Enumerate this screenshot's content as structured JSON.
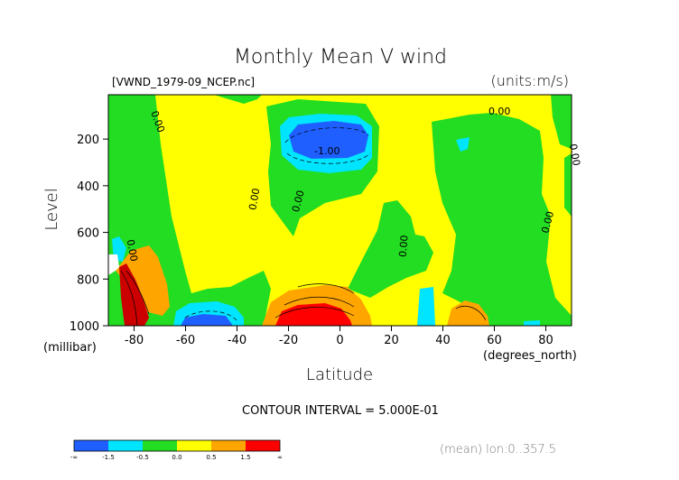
{
  "chart_data": {
    "type": "heatmap",
    "title": "Monthly Mean V wind",
    "file_label": "[VWND_1979-09_NCEP.nc]",
    "units_label": "(units:m/s)",
    "xlabel": "Latitude",
    "ylabel": "Level",
    "x_units": "(degrees_north)",
    "y_units": "(millibar)",
    "xlim": [
      -90,
      90
    ],
    "ylim": [
      1000,
      10
    ],
    "x_ticks": [
      {
        "value": -80,
        "label": "-80"
      },
      {
        "value": -60,
        "label": "-60"
      },
      {
        "value": -40,
        "label": "-40"
      },
      {
        "value": -20,
        "label": "-20"
      },
      {
        "value": 0,
        "label": "0"
      },
      {
        "value": 20,
        "label": "20"
      },
      {
        "value": 40,
        "label": "40"
      },
      {
        "value": 60,
        "label": "60"
      },
      {
        "value": 80,
        "label": "80"
      }
    ],
    "y_ticks": [
      {
        "value": 200,
        "label": "200"
      },
      {
        "value": 400,
        "label": "400"
      },
      {
        "value": 600,
        "label": "600"
      },
      {
        "value": 800,
        "label": "800"
      },
      {
        "value": 1000,
        "label": "1000"
      }
    ],
    "contour_interval_text": "CONTOUR INTERVAL = 5.000E-01",
    "average_text": "(mean) lon:0..357.5",
    "contour_labels": [
      {
        "text": "0.00",
        "lat": -72,
        "lev": 130,
        "rotate": 70
      },
      {
        "text": "0.00",
        "lat": 62,
        "lev": 95,
        "rotate": 0
      },
      {
        "text": "-1.00",
        "lat": -5,
        "lev": 265,
        "rotate": 0
      },
      {
        "text": "0.00",
        "lat": -32,
        "lev": 460,
        "rotate": -80
      },
      {
        "text": "0.00",
        "lat": -15,
        "lev": 470,
        "rotate": -75
      },
      {
        "text": "0.00",
        "lat": 82,
        "lev": 560,
        "rotate": -75
      },
      {
        "text": "0.00",
        "lat": 90,
        "lev": 270,
        "rotate": 80
      },
      {
        "text": "0.00",
        "lat": 26,
        "lev": 660,
        "rotate": -85
      },
      {
        "text": "0.00",
        "lat": -82,
        "lev": 680,
        "rotate": 80
      }
    ],
    "colorbar": {
      "colors": [
        "#1f5fff",
        "#00e5ff",
        "#22dd22",
        "#ffff00",
        "#ffa500",
        "#ff0000"
      ],
      "labels": [
        "-∞",
        "-1.5",
        "-0.5",
        "0.0",
        "0.5",
        "1.5",
        "∞"
      ]
    }
  }
}
